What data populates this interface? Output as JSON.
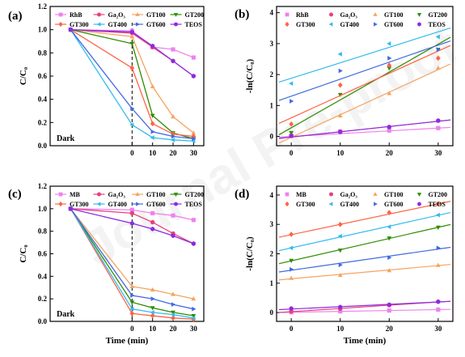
{
  "watermark": "Journal Pre-proof",
  "chart_data": [
    {
      "panel": "(a)",
      "type": "line",
      "ylabel": "C/C₀",
      "xlabel": "",
      "xlim": [
        -40,
        35
      ],
      "ylim": [
        0,
        1.2
      ],
      "xticks": [
        0,
        10,
        20,
        30
      ],
      "yticks": [
        0,
        0.2,
        0.4,
        0.6,
        0.8,
        1.0,
        1.2
      ],
      "ytick_labels": [
        "0.0",
        "0.2",
        "0.4",
        "0.6",
        "0.8",
        "1.0",
        "1.2"
      ],
      "dark_label": "Dark",
      "dark_line_x": 0,
      "legend_cols": 4,
      "series": [
        {
          "name": "RhB",
          "color": "#ee82ee",
          "marker": "square",
          "x": [
            -30,
            0,
            10,
            20,
            30
          ],
          "y": [
            1.0,
            0.99,
            0.85,
            0.83,
            0.76
          ]
        },
        {
          "name": "Ga₂O₃",
          "color": "#e8417c",
          "marker": "circle",
          "x": [
            -30,
            0,
            10,
            20,
            30
          ],
          "y": [
            1.0,
            0.97,
            0.85,
            0.73,
            0.6
          ]
        },
        {
          "name": "GT100",
          "color": "#f4a460",
          "marker": "triangle-up",
          "x": [
            -30,
            0,
            10,
            20,
            30
          ],
          "y": [
            1.0,
            0.94,
            0.51,
            0.25,
            0.11
          ]
        },
        {
          "name": "GT200",
          "color": "#2e8b00",
          "marker": "triangle-down",
          "x": [
            -30,
            0,
            10,
            20,
            30
          ],
          "y": [
            1.0,
            0.88,
            0.26,
            0.11,
            0.06
          ]
        },
        {
          "name": "GT300",
          "color": "#ff6347",
          "marker": "diamond",
          "x": [
            -30,
            0,
            10,
            20,
            30
          ],
          "y": [
            1.0,
            0.67,
            0.19,
            0.1,
            0.08
          ]
        },
        {
          "name": "GT400",
          "color": "#33bbee",
          "marker": "triangle-left",
          "x": [
            -30,
            0,
            10,
            20,
            30
          ],
          "y": [
            1.0,
            0.18,
            0.07,
            0.05,
            0.04
          ]
        },
        {
          "name": "GT600",
          "color": "#4169e1",
          "marker": "triangle-right",
          "x": [
            -30,
            0,
            10,
            20,
            30
          ],
          "y": [
            1.0,
            0.32,
            0.12,
            0.08,
            0.06
          ]
        },
        {
          "name": "TEOS",
          "color": "#8a2be2",
          "marker": "hexagon",
          "x": [
            -30,
            0,
            10,
            20,
            30
          ],
          "y": [
            1.0,
            0.98,
            0.86,
            0.73,
            0.6
          ]
        }
      ]
    },
    {
      "panel": "(b)",
      "type": "scatter",
      "ylabel": "-ln(C/C₀)",
      "xlabel": "",
      "xlim": [
        -3,
        33
      ],
      "ylim": [
        -0.3,
        4.2
      ],
      "xticks": [
        0,
        10,
        20,
        30
      ],
      "yticks": [
        0,
        1,
        2,
        3,
        4
      ],
      "ytick_labels": [
        "0",
        "1",
        "2",
        "3",
        "4"
      ],
      "legend_cols": 4,
      "series": [
        {
          "name": "RhB",
          "color": "#ee82ee",
          "marker": "square",
          "x": [
            0,
            10,
            20,
            30
          ],
          "y": [
            0.01,
            0.16,
            0.19,
            0.27
          ],
          "fit": [
            0.0,
            0.009
          ]
        },
        {
          "name": "Ga₂O₃",
          "color": "#e8417c",
          "marker": "circle",
          "x": [
            0,
            10,
            20,
            30
          ],
          "y": [
            0.03,
            0.16,
            0.31,
            0.51
          ],
          "fit": [
            -0.02,
            0.017
          ]
        },
        {
          "name": "GT100",
          "color": "#f4a460",
          "marker": "triangle-up",
          "x": [
            0,
            10,
            20,
            30
          ],
          "y": [
            0.06,
            0.67,
            1.39,
            2.21
          ],
          "fit": [
            -0.03,
            0.073
          ]
        },
        {
          "name": "GT200",
          "color": "#2e8b00",
          "marker": "triangle-down",
          "x": [
            0,
            10,
            20,
            30
          ],
          "y": [
            0.12,
            1.35,
            2.21,
            2.81
          ],
          "fit": [
            0.28,
            0.09
          ]
        },
        {
          "name": "GT300",
          "color": "#ff6347",
          "marker": "diamond",
          "x": [
            0,
            10,
            20,
            30
          ],
          "y": [
            0.4,
            1.66,
            2.3,
            2.53
          ],
          "fit": [
            0.6,
            0.072
          ]
        },
        {
          "name": "GT400",
          "color": "#33bbee",
          "marker": "triangle-left",
          "x": [
            0,
            10,
            20,
            30
          ],
          "y": [
            1.71,
            2.66,
            3.0,
            3.22
          ],
          "fit": [
            1.88,
            0.05
          ]
        },
        {
          "name": "GT600",
          "color": "#4169e1",
          "marker": "triangle-right",
          "x": [
            0,
            10,
            20,
            30
          ],
          "y": [
            1.14,
            2.12,
            2.53,
            2.81
          ],
          "fit": [
            1.3,
            0.055
          ]
        },
        {
          "name": "TEOS",
          "color": "#8a2be2",
          "marker": "hexagon",
          "x": [
            0,
            10,
            20,
            30
          ],
          "y": [
            0.02,
            0.14,
            0.3,
            0.51
          ],
          "fit": [
            -0.02,
            0.017
          ]
        }
      ]
    },
    {
      "panel": "(c)",
      "type": "line",
      "ylabel": "C/C₀",
      "xlabel": "Time (min)",
      "xlim": [
        -40,
        35
      ],
      "ylim": [
        0,
        1.2
      ],
      "xticks": [
        0,
        10,
        20,
        30
      ],
      "yticks": [
        0,
        0.2,
        0.4,
        0.6,
        0.8,
        1.0,
        1.2
      ],
      "ytick_labels": [
        "0.0",
        "0.2",
        "0.4",
        "0.6",
        "0.8",
        "1.0",
        "1.2"
      ],
      "dark_label": "Dark",
      "dark_line_x": 0,
      "legend_cols": 4,
      "series": [
        {
          "name": "MB",
          "color": "#ee82ee",
          "marker": "square",
          "x": [
            -30,
            0,
            10,
            20,
            30
          ],
          "y": [
            1.0,
            0.99,
            0.96,
            0.94,
            0.9
          ]
        },
        {
          "name": "Ga₂O₃",
          "color": "#e8417c",
          "marker": "circle",
          "x": [
            -30,
            0,
            10,
            20,
            30
          ],
          "y": [
            1.0,
            0.96,
            0.88,
            0.78,
            0.69
          ]
        },
        {
          "name": "GT100",
          "color": "#f4a460",
          "marker": "triangle-up",
          "x": [
            -30,
            0,
            10,
            20,
            30
          ],
          "y": [
            1.0,
            0.31,
            0.28,
            0.24,
            0.2
          ]
        },
        {
          "name": "GT200",
          "color": "#2e8b00",
          "marker": "triangle-down",
          "x": [
            -30,
            0,
            10,
            20,
            30
          ],
          "y": [
            1.0,
            0.17,
            0.12,
            0.08,
            0.05
          ]
        },
        {
          "name": "GT300",
          "color": "#ff6347",
          "marker": "diamond",
          "x": [
            -30,
            0,
            10,
            20,
            30
          ],
          "y": [
            1.0,
            0.07,
            0.05,
            0.03,
            0.02
          ]
        },
        {
          "name": "GT400",
          "color": "#33bbee",
          "marker": "triangle-left",
          "x": [
            -30,
            0,
            10,
            20,
            30
          ],
          "y": [
            1.0,
            0.11,
            0.08,
            0.06,
            0.03
          ]
        },
        {
          "name": "GT600",
          "color": "#4169e1",
          "marker": "triangle-right",
          "x": [
            -30,
            0,
            10,
            20,
            30
          ],
          "y": [
            1.0,
            0.23,
            0.2,
            0.15,
            0.11
          ]
        },
        {
          "name": "TEOS",
          "color": "#8a2be2",
          "marker": "hexagon",
          "x": [
            -30,
            0,
            10,
            20,
            30
          ],
          "y": [
            1.0,
            0.87,
            0.82,
            0.76,
            0.69
          ]
        }
      ]
    },
    {
      "panel": "(d)",
      "type": "scatter",
      "ylabel": "-ln(C/C₀)",
      "xlabel": "Time (min)",
      "xlim": [
        -3,
        33
      ],
      "ylim": [
        -0.3,
        4.3
      ],
      "xticks": [
        0,
        10,
        20,
        30
      ],
      "yticks": [
        0,
        1,
        2,
        3,
        4
      ],
      "ytick_labels": [
        "0",
        "1",
        "2",
        "3",
        "4"
      ],
      "legend_cols": 4,
      "series": [
        {
          "name": "MB",
          "color": "#ee82ee",
          "marker": "square",
          "x": [
            0,
            10,
            20,
            30
          ],
          "y": [
            0.01,
            0.04,
            0.07,
            0.1
          ],
          "fit": [
            0.01,
            0.003
          ]
        },
        {
          "name": "Ga₂O₃",
          "color": "#e8417c",
          "marker": "circle",
          "x": [
            0,
            10,
            20,
            30
          ],
          "y": [
            0.04,
            0.13,
            0.25,
            0.37
          ],
          "fit": [
            0.03,
            0.011
          ]
        },
        {
          "name": "GT100",
          "color": "#f4a460",
          "marker": "triangle-up",
          "x": [
            0,
            10,
            20,
            30
          ],
          "y": [
            1.17,
            1.27,
            1.43,
            1.61
          ],
          "fit": [
            1.15,
            0.015
          ]
        },
        {
          "name": "GT200",
          "color": "#2e8b00",
          "marker": "triangle-down",
          "x": [
            0,
            10,
            20,
            30
          ],
          "y": [
            1.77,
            2.12,
            2.53,
            2.9
          ],
          "fit": [
            1.76,
            0.038
          ]
        },
        {
          "name": "GT300",
          "color": "#ff6347",
          "marker": "diamond",
          "x": [
            0,
            10,
            20,
            30
          ],
          "y": [
            2.66,
            3.0,
            3.4,
            3.7
          ],
          "fit": [
            2.65,
            0.035
          ]
        },
        {
          "name": "GT400",
          "color": "#33bbee",
          "marker": "triangle-left",
          "x": [
            0,
            10,
            20,
            30
          ],
          "y": [
            2.2,
            2.6,
            2.92,
            3.32
          ],
          "fit": [
            2.2,
            0.037
          ]
        },
        {
          "name": "GT600",
          "color": "#4169e1",
          "marker": "triangle-right",
          "x": [
            0,
            10,
            20,
            30
          ],
          "y": [
            1.47,
            1.62,
            1.87,
            2.2
          ],
          "fit": [
            1.44,
            0.024
          ]
        },
        {
          "name": "TEOS",
          "color": "#8a2be2",
          "marker": "hexagon",
          "x": [
            0,
            10,
            20,
            30
          ],
          "y": [
            0.14,
            0.19,
            0.27,
            0.37
          ],
          "fit": [
            0.12,
            0.008
          ]
        }
      ]
    }
  ]
}
